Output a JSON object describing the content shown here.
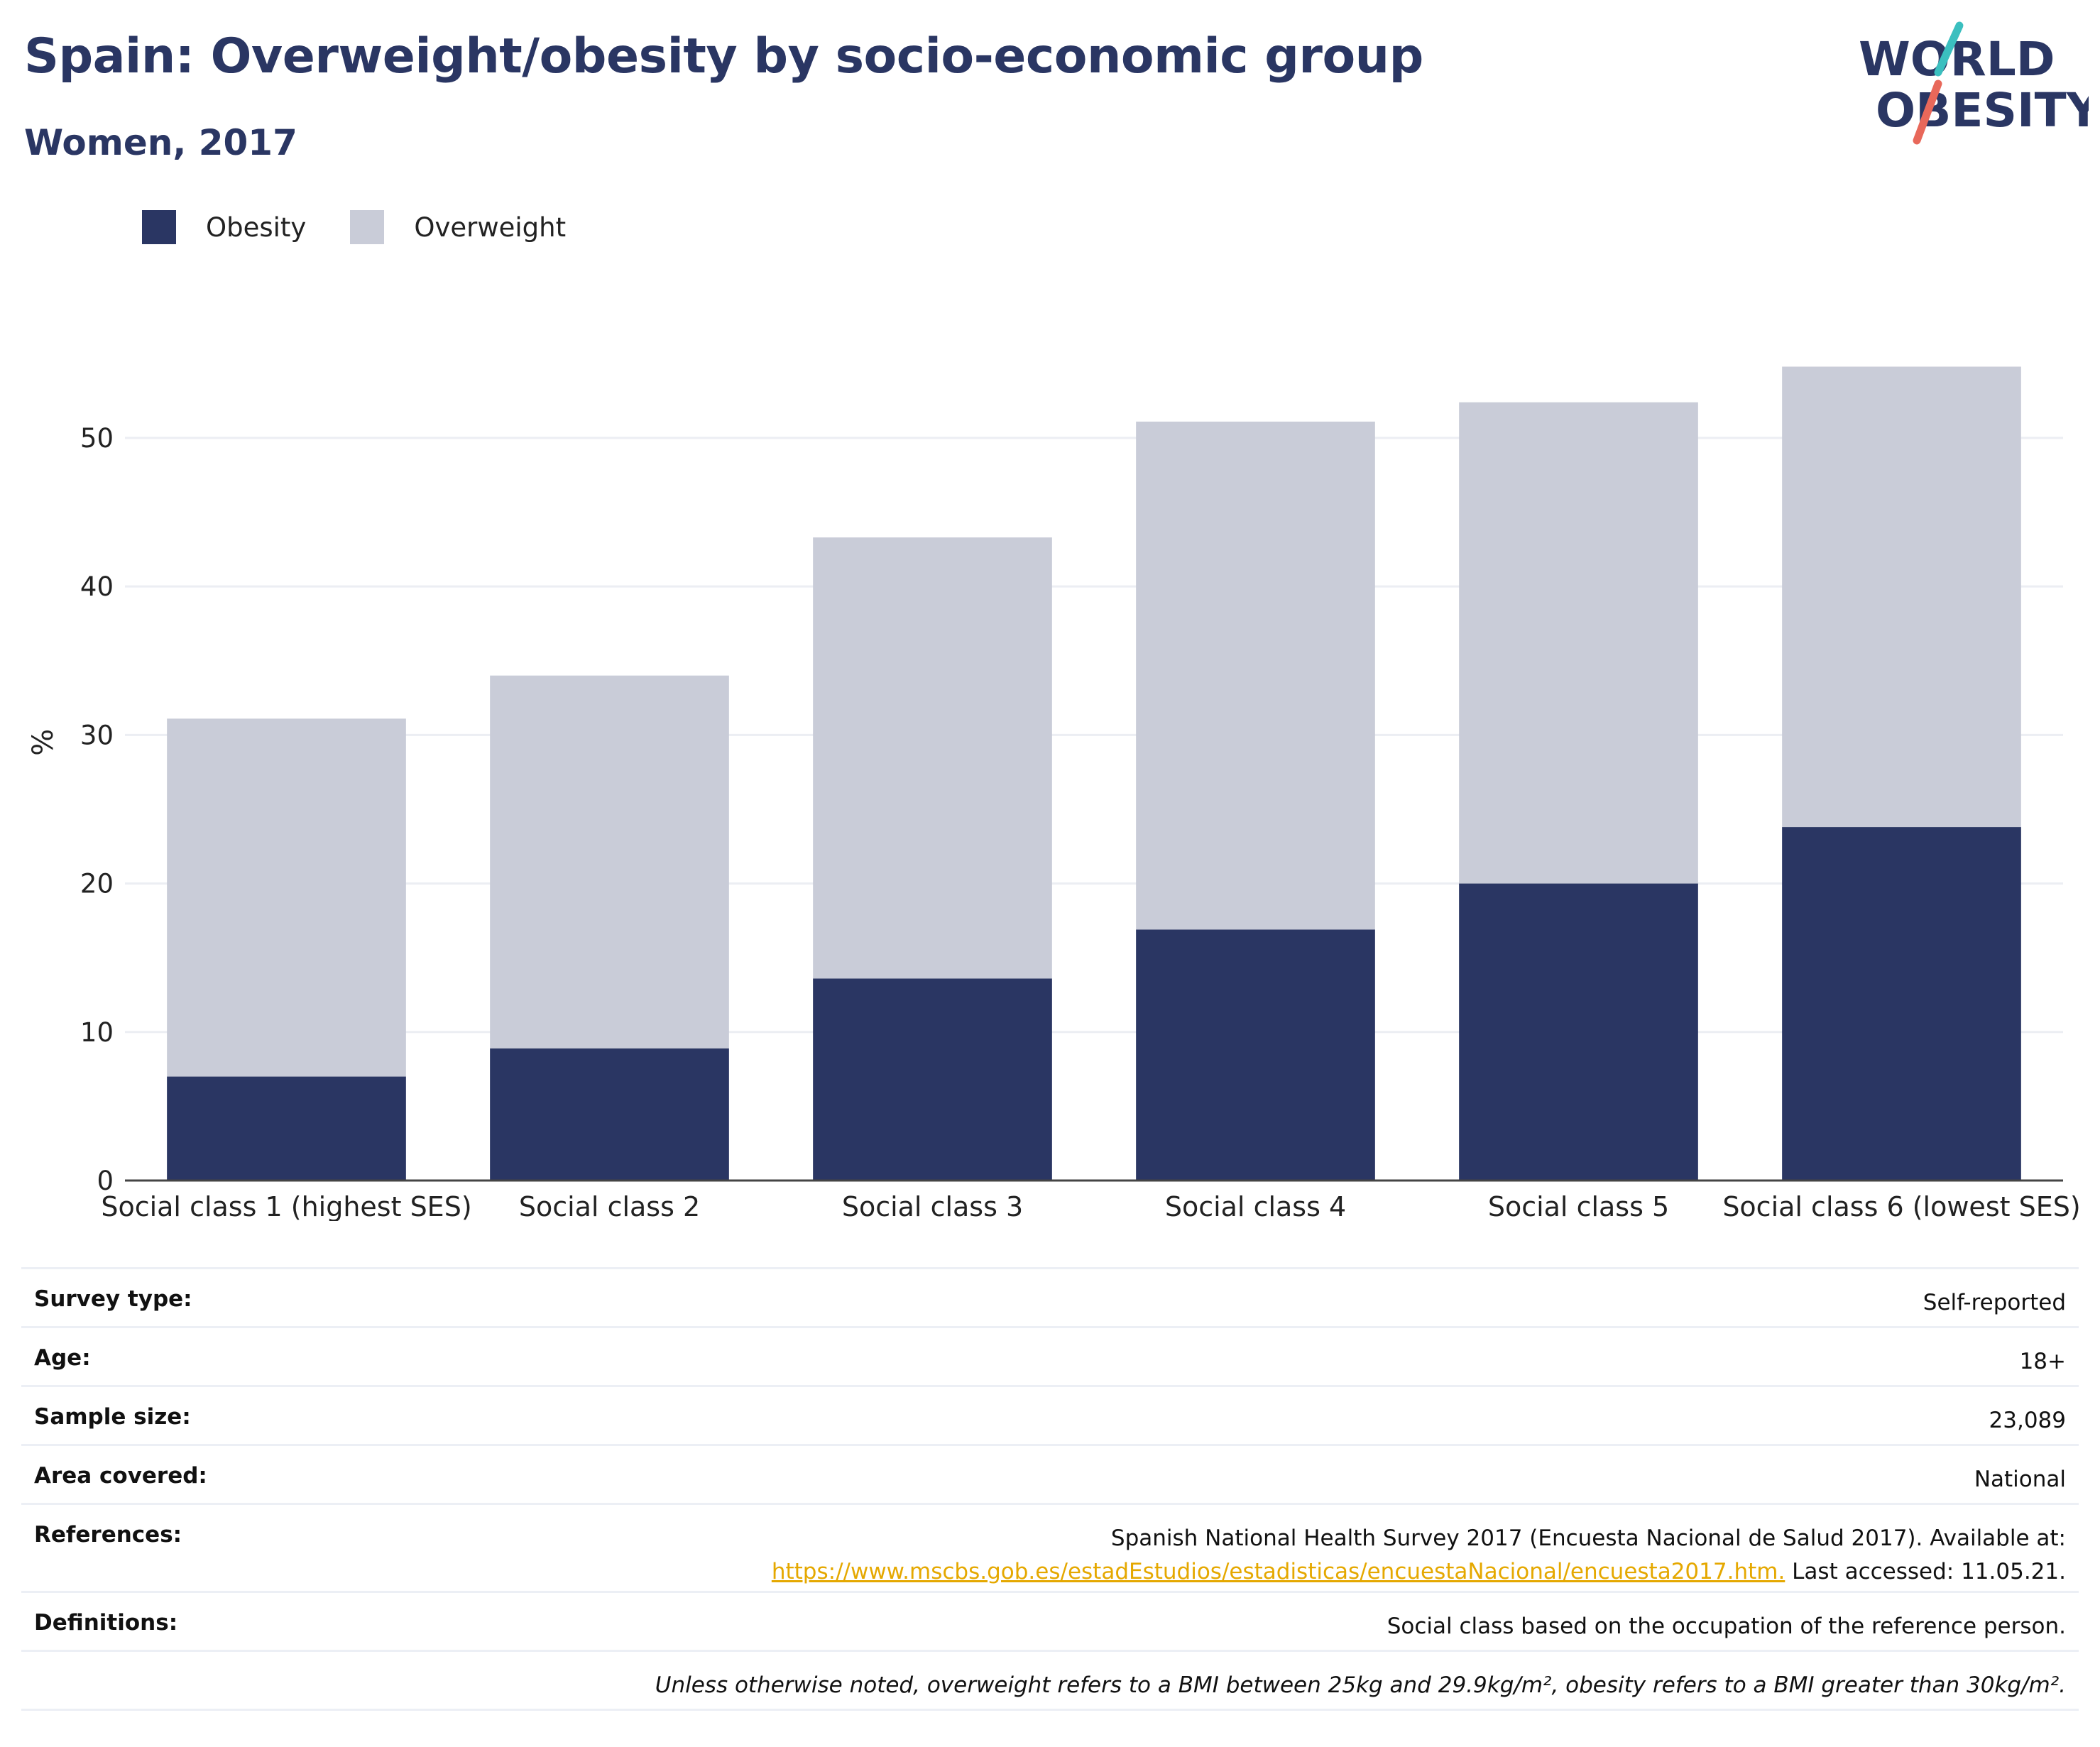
{
  "header": {
    "title": "Spain: Overweight/obesity by socio-economic group",
    "subtitle": "Women, 2017"
  },
  "logo": {
    "line1": "WORLD",
    "line2": "OBESITY",
    "accent_colors": [
      "#3bbfbf",
      "#e8685a"
    ]
  },
  "legend": [
    {
      "label": "Obesity",
      "color": "#2a3663"
    },
    {
      "label": "Overweight",
      "color": "#c9ccd8"
    }
  ],
  "chart_data": {
    "type": "bar",
    "stacked": true,
    "categories": [
      "Social class 1 (highest SES)",
      "Social class 2",
      "Social class 3",
      "Social class 4",
      "Social class 5",
      "Social class 6 (lowest SES)"
    ],
    "series": [
      {
        "name": "Obesity",
        "color": "#2a3663",
        "values": [
          7.0,
          8.9,
          13.6,
          16.9,
          20.0,
          23.8
        ]
      },
      {
        "name": "Overweight",
        "color": "#c9ccd8",
        "values": [
          24.1,
          25.1,
          29.7,
          34.2,
          32.4,
          31.0
        ]
      }
    ],
    "ylabel": "%",
    "yticks": [
      0,
      10,
      20,
      30,
      40,
      50
    ],
    "ylim": [
      0,
      57.5
    ],
    "grid": true,
    "legend_position": "top-left"
  },
  "info_table": {
    "survey_type": {
      "label": "Survey type:",
      "value": "Self-reported"
    },
    "age": {
      "label": "Age:",
      "value": "18+"
    },
    "sample_size": {
      "label": "Sample size:",
      "value": "23,089"
    },
    "area": {
      "label": "Area covered:",
      "value": "National"
    },
    "references": {
      "label": "References:",
      "text1": "Spanish National Health Survey 2017 (Encuesta Nacional de Salud 2017). Available at:",
      "link": "https://www.mscbs.gob.es/estadEstudios/estadisticas/encuestaNacional/encuesta2017.htm.",
      "text2": " Last accessed: 11.05.21."
    },
    "definitions": {
      "label": "Definitions:",
      "value": "Social class based on the occupation of the reference person."
    },
    "note": "Unless otherwise noted, overweight refers to a BMI between 25kg and 29.9kg/m², obesity refers to a BMI greater than 30kg/m²."
  }
}
